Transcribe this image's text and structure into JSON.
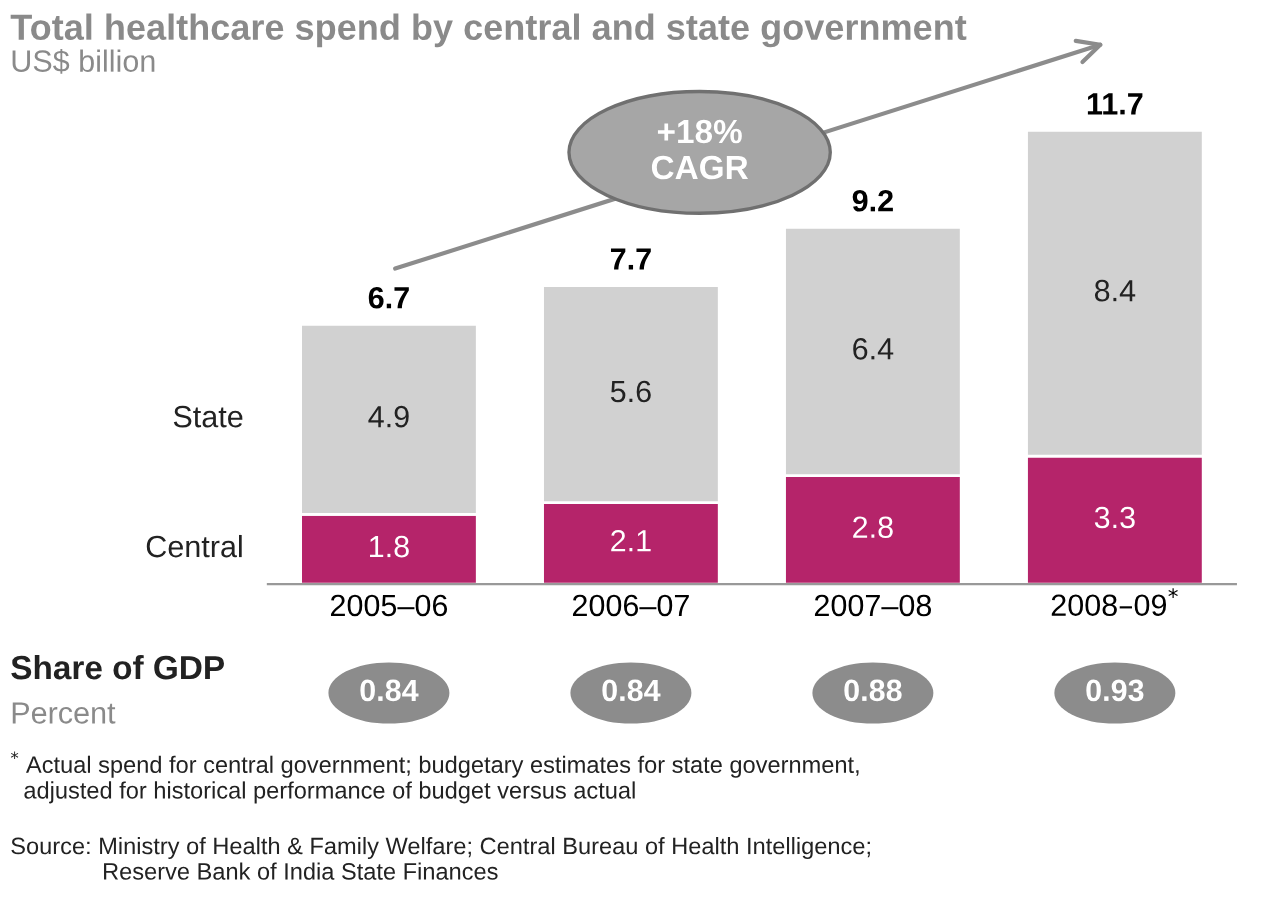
{
  "chart_data": [
    {
      "type": "bar",
      "title": "Total healthcare spend by central and state government",
      "subtitle": "US$ billion",
      "stacked": true,
      "data_labels": true,
      "tick_labels": "x",
      "legend": false,
      "grid": false,
      "categories": [
        "2005–06",
        "2006–07",
        "2007–08",
        "2008–09$^{*}$"
      ],
      "series": [
        {
          "name": "Central",
          "color": "#b5246a",
          "values": [
            1.8,
            2.1,
            2.8,
            3.3
          ]
        },
        {
          "name": "State",
          "color": "#d1d1d1",
          "values": [
            4.9,
            5.6,
            6.4,
            8.4
          ]
        }
      ],
      "totals": [
        "6.7",
        "7.7",
        "9.2",
        "11.7"
      ],
      "annotations": [
        "+18%\nCAGR",
        "$^{*}$ Actual spend for central government; budgetary estimates for state government,\n  adjusted for historical performance of budget versus actual",
        "Source: Ministry of Health & Family Welfare; Central Bureau of Health Intelligence;\n              Reserve Bank of India State Finances"
      ]
    },
    {
      "type": "other",
      "title": "Share of GDP",
      "subtitle": "Percent",
      "categories": [
        null,
        null,
        null,
        null
      ],
      "values": [
        0.84,
        0.84,
        0.88,
        0.93
      ],
      "data_labels": true,
      "color": "#8c8c8c"
    }
  ]
}
